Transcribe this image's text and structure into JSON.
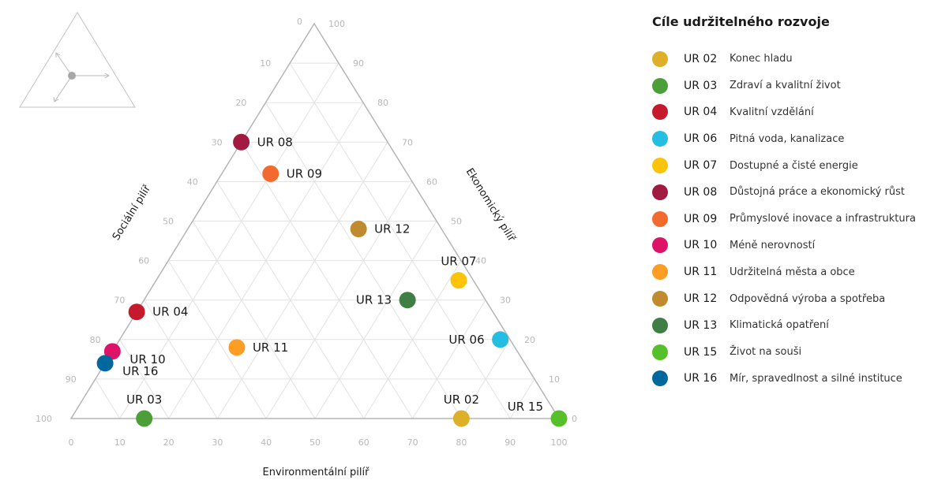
{
  "chart_data": {
    "type": "ternary-scatter",
    "axes": {
      "bottom": {
        "label": "Environmentální pilíř",
        "ticks": [
          "0",
          "10",
          "20",
          "30",
          "40",
          "50",
          "60",
          "70",
          "80",
          "90",
          "100"
        ]
      },
      "left": {
        "label": "Sociální pilíř",
        "ticks": [
          "0",
          "10",
          "20",
          "30",
          "40",
          "50",
          "60",
          "70",
          "80",
          "90",
          "100"
        ]
      },
      "right": {
        "label": "Ekonomický pilíř",
        "ticks": [
          "0",
          "10",
          "20",
          "30",
          "40",
          "50",
          "60",
          "70",
          "80",
          "90",
          "100"
        ]
      }
    },
    "grid": true,
    "legend_title": "Cíle udržitelného rozvoje",
    "legend_position": "right",
    "points": [
      {
        "code": "UR 02",
        "name": "Konec hladu",
        "color": "#DDB02A",
        "environmental": 80,
        "economic": 0,
        "social": 20,
        "label_side": "top"
      },
      {
        "code": "UR 03",
        "name": "Zdraví a kvalitní život",
        "color": "#4C9F38",
        "environmental": 15,
        "economic": 0,
        "social": 85,
        "label_side": "top"
      },
      {
        "code": "UR 04",
        "name": "Kvalitní vzdělání",
        "color": "#C5192D",
        "environmental": 0,
        "economic": 27,
        "social": 73,
        "label_side": "right"
      },
      {
        "code": "UR 06",
        "name": "Pitná voda, kanalizace",
        "color": "#26BDE2",
        "environmental": 78,
        "economic": 20,
        "social": 2,
        "label_side": "left"
      },
      {
        "code": "UR 07",
        "name": "Dostupné a čisté energie",
        "color": "#FCC30B",
        "environmental": 62,
        "economic": 35,
        "social": 3,
        "label_side": "top"
      },
      {
        "code": "UR 08",
        "name": "Důstojná práce a ekonomický růst",
        "color": "#A21942",
        "environmental": 0,
        "economic": 70,
        "social": 30,
        "label_side": "right"
      },
      {
        "code": "UR 09",
        "name": "Průmyslové inovace a infrastruktura",
        "color": "#F26A2E",
        "environmental": 10,
        "economic": 62,
        "social": 28,
        "label_side": "right"
      },
      {
        "code": "UR 10",
        "name": "Méně nerovností",
        "color": "#DD1367",
        "environmental": 0,
        "economic": 17,
        "social": 83,
        "label_side": "right-below"
      },
      {
        "code": "UR 11",
        "name": "Udržitelná města a obce",
        "color": "#FD9D24",
        "environmental": 25,
        "economic": 18,
        "social": 57,
        "label_side": "right"
      },
      {
        "code": "UR 12",
        "name": "Odpovědná výroba a spotřeba",
        "color": "#BF8B2E",
        "environmental": 35,
        "economic": 48,
        "social": 17,
        "label_side": "right"
      },
      {
        "code": "UR 13",
        "name": "Klimatická opatření",
        "color": "#3F7E44",
        "environmental": 54,
        "economic": 30,
        "social": 16,
        "label_side": "left"
      },
      {
        "code": "UR 15",
        "name": "Život na souši",
        "color": "#56C02B",
        "environmental": 100,
        "economic": 0,
        "social": 0,
        "label_side": "left-above"
      },
      {
        "code": "UR 16",
        "name": "Mír, spravedlnost a silné instituce",
        "color": "#00689D",
        "environmental": 0,
        "economic": 14,
        "social": 86,
        "label_side": "right-below"
      }
    ]
  }
}
